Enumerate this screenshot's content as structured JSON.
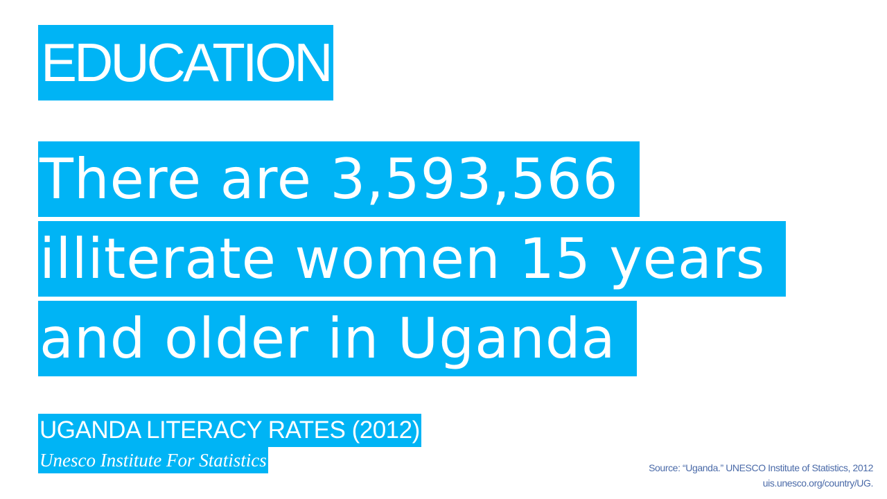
{
  "header": {
    "title": "EDUCATION"
  },
  "statement": {
    "lines": [
      "There are 3,593,566",
      "illiterate women 15 years",
      "and older in Uganda"
    ]
  },
  "footer": {
    "heading": "UGANDA LITERACY RATES (2012)",
    "subheading": "Unesco Institute For Statistics"
  },
  "source": {
    "lines": [
      "Source: “Uganda.” UNESCO Institute of Statistics, 2012",
      "uis.unesco.org/country/UG."
    ]
  }
}
